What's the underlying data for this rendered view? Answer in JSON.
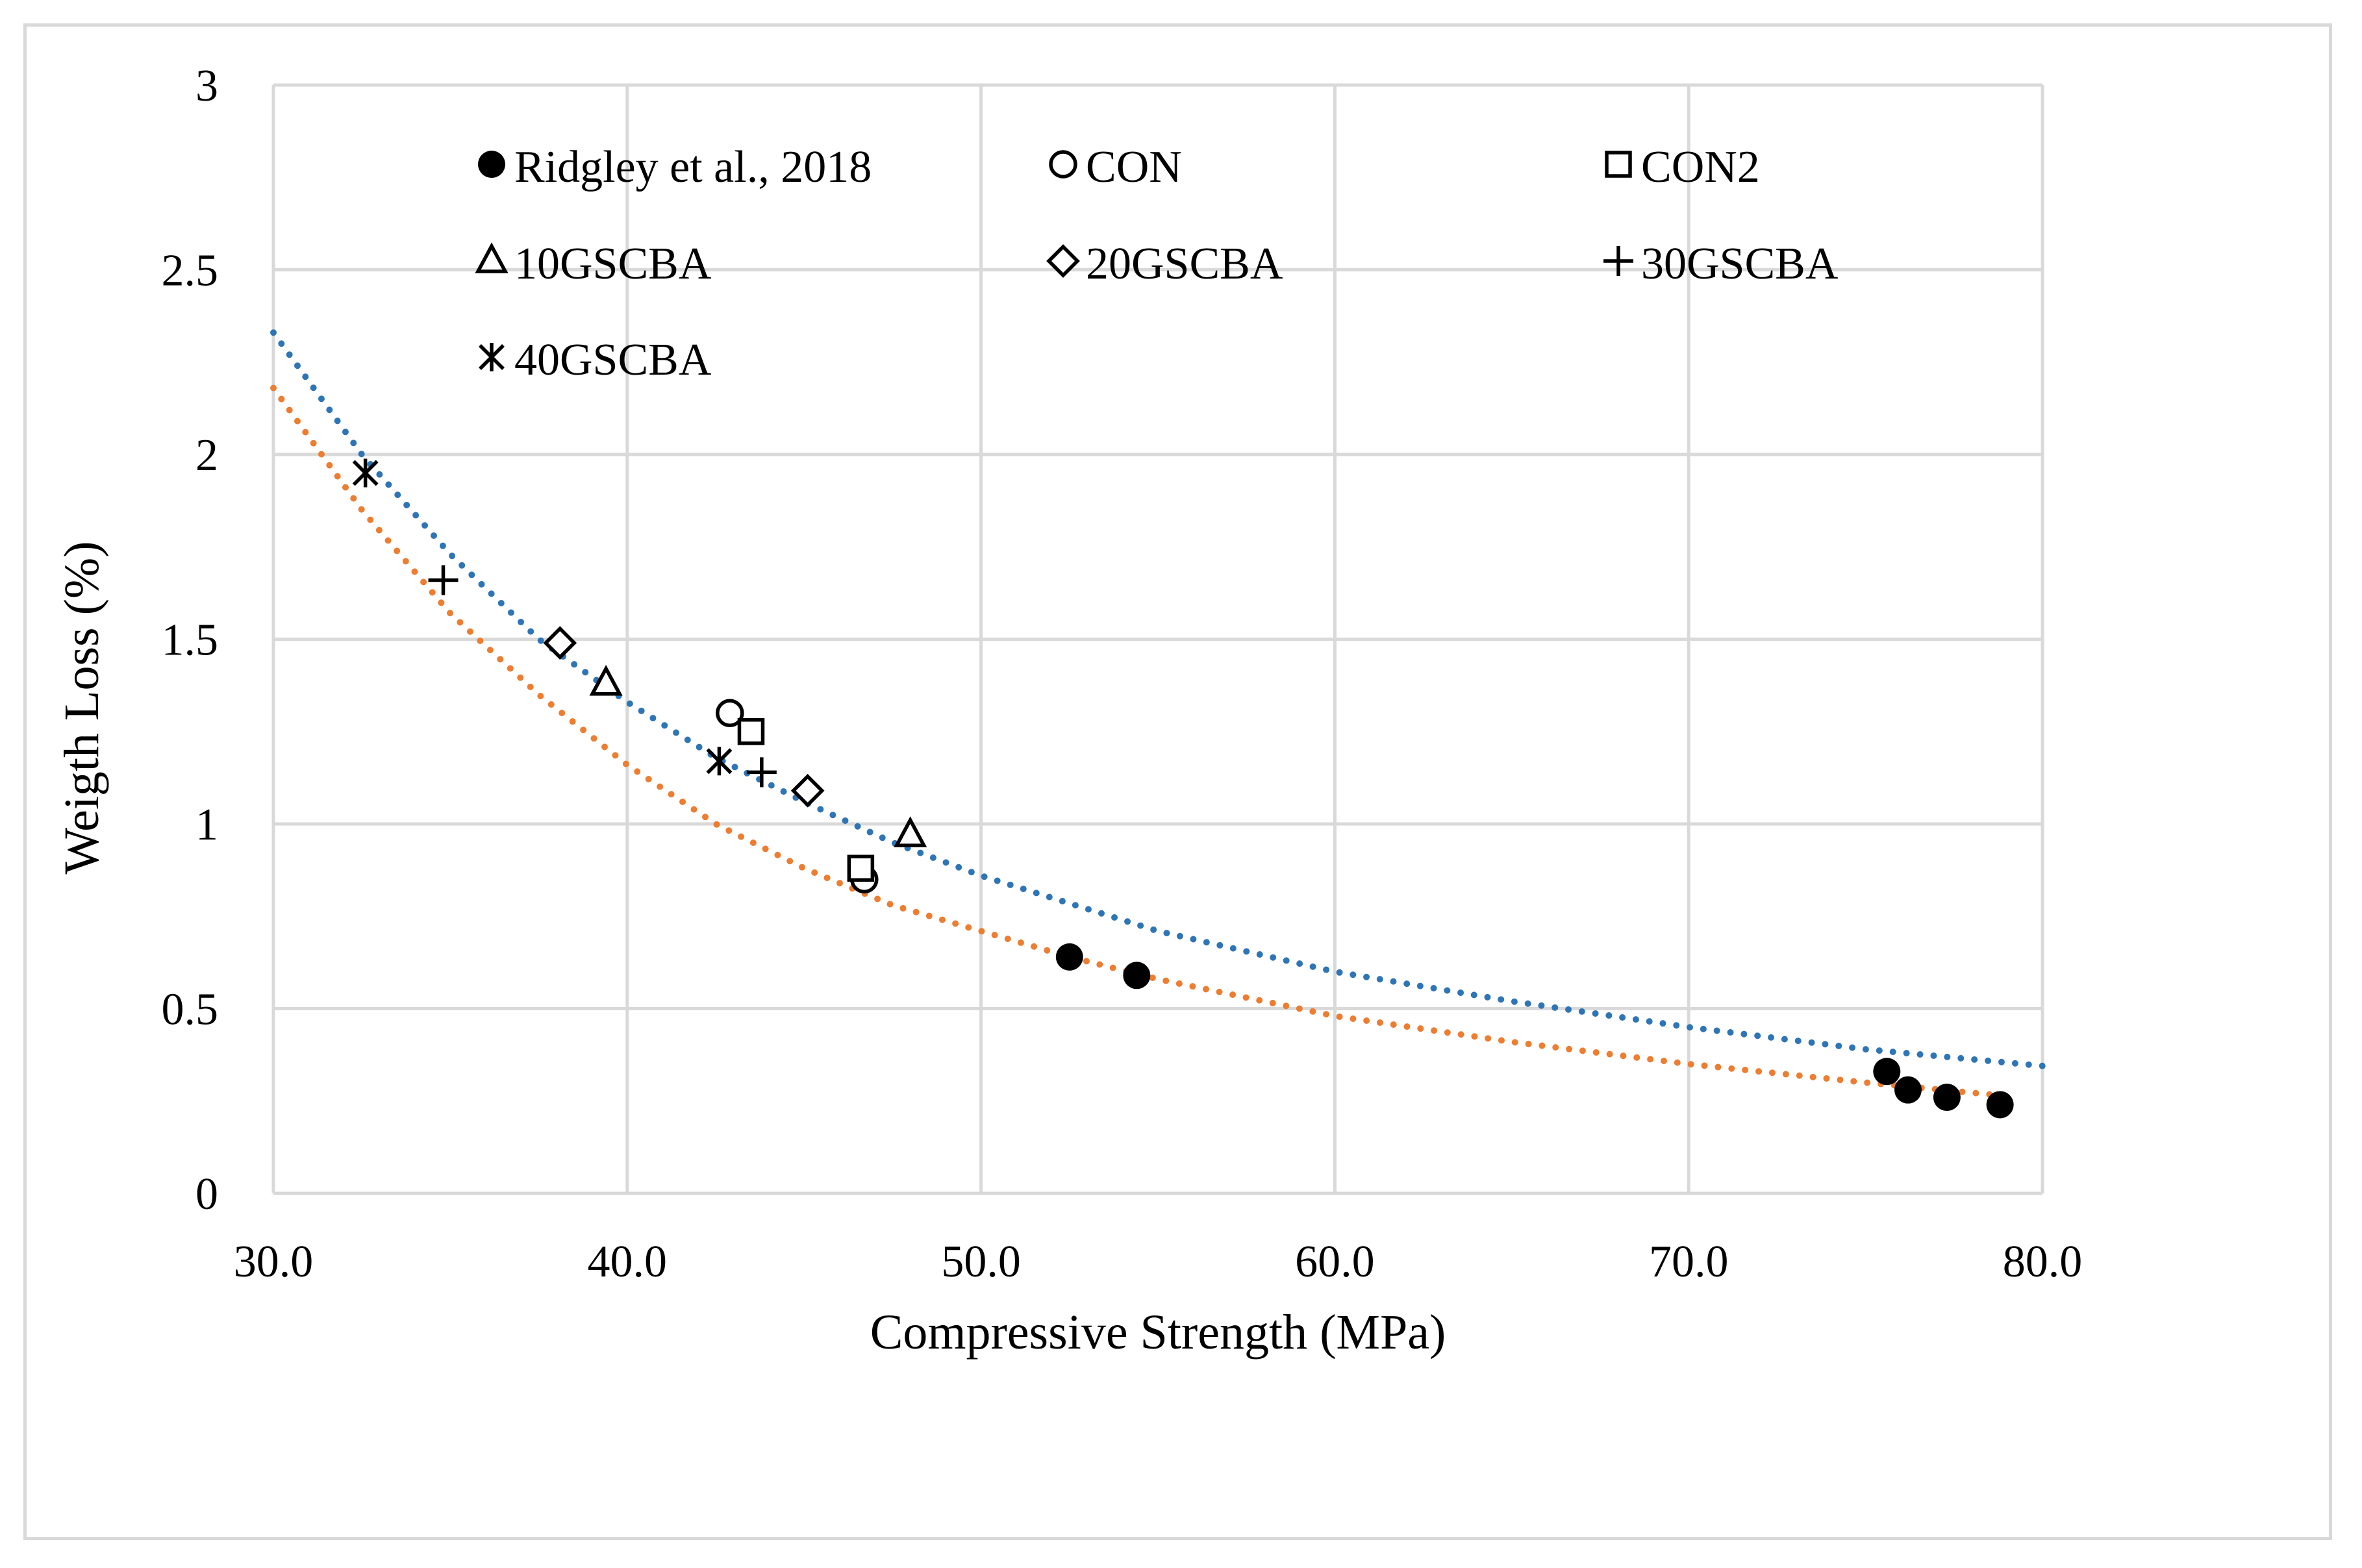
{
  "chart_data": {
    "type": "scatter",
    "title": "",
    "xlabel": "Compressive Strength (MPa)",
    "ylabel": "Weigth Loss (%)",
    "xlim": [
      30,
      80
    ],
    "ylim": [
      0,
      3
    ],
    "x_ticks": [
      30,
      40,
      50,
      60,
      70,
      80
    ],
    "x_tick_labels": [
      "30.0",
      "40.0",
      "50.0",
      "60.0",
      "70.0",
      "80.0"
    ],
    "y_ticks": [
      0,
      0.5,
      1,
      1.5,
      2,
      2.5,
      3
    ],
    "y_tick_labels": [
      "0",
      "0.5",
      "1",
      "1.5",
      "2",
      "2.5",
      "3"
    ],
    "grid": true,
    "legend_position": "top-left inside plot",
    "series": [
      {
        "name": "Ridgley et al., 2018",
        "marker": "filled-circle",
        "x": [
          52.5,
          54.4,
          75.6,
          76.2,
          77.3,
          78.8
        ],
        "y": [
          0.64,
          0.59,
          0.33,
          0.28,
          0.26,
          0.24
        ]
      },
      {
        "name": "CON",
        "marker": "open-circle",
        "x": [
          42.9,
          46.7
        ],
        "y": [
          1.3,
          0.85
        ]
      },
      {
        "name": "CON2",
        "marker": "open-square",
        "x": [
          43.5,
          46.6
        ],
        "y": [
          1.25,
          0.88
        ]
      },
      {
        "name": "10GSCBA",
        "marker": "open-triangle",
        "x": [
          39.4,
          48.0
        ],
        "y": [
          1.38,
          0.97
        ]
      },
      {
        "name": "20GSCBA",
        "marker": "open-diamond",
        "x": [
          38.1,
          45.1
        ],
        "y": [
          1.49,
          1.09
        ]
      },
      {
        "name": "30GSCBA",
        "marker": "plus",
        "x": [
          34.8,
          43.8
        ],
        "y": [
          1.66,
          1.14
        ]
      },
      {
        "name": "40GSCBA",
        "marker": "asterisk",
        "x": [
          32.6,
          42.6
        ],
        "y": [
          1.95,
          1.17
        ]
      }
    ],
    "trendlines": [
      {
        "name": "blue trend (all points)",
        "color": "#2E75B6",
        "style": "dotted",
        "x": [
          30,
          32.5,
          35,
          37.5,
          40,
          42.5,
          45,
          47.5,
          50,
          55,
          60,
          65,
          70,
          75,
          80
        ],
        "y": [
          2.33,
          2.0,
          1.73,
          1.5,
          1.33,
          1.18,
          1.06,
          0.95,
          0.86,
          0.71,
          0.6,
          0.52,
          0.45,
          0.39,
          0.345
        ]
      },
      {
        "name": "orange trend (Ridgley et al., 2018)",
        "color": "#ED7D31",
        "style": "dotted",
        "x": [
          30,
          32.5,
          35,
          37.5,
          40,
          42.5,
          45,
          47.5,
          50,
          52.5,
          55,
          60,
          65,
          70,
          75,
          78.8
        ],
        "y": [
          2.18,
          1.85,
          1.57,
          1.35,
          1.16,
          1.0,
          0.88,
          0.78,
          0.71,
          0.64,
          0.58,
          0.48,
          0.41,
          0.35,
          0.3,
          0.265
        ]
      }
    ]
  }
}
